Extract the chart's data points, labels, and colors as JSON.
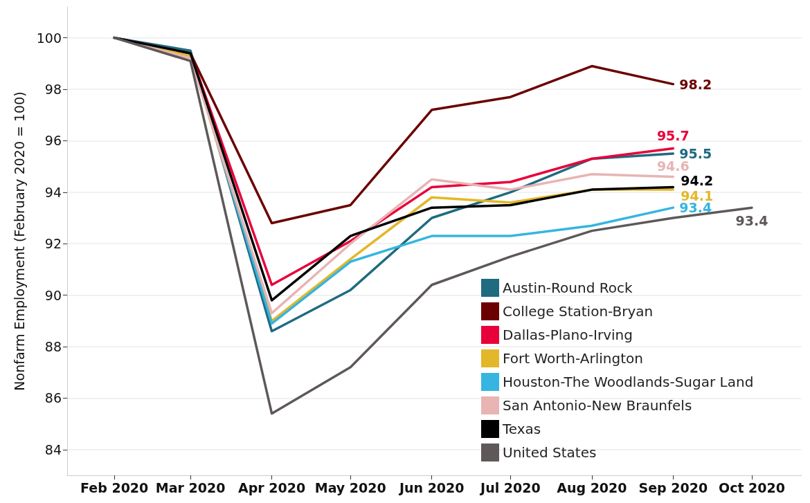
{
  "chart_data": {
    "type": "line",
    "ylabel": "Nonfarm Employment (February 2020 = 100)",
    "x": [
      "2020-02",
      "2020-03",
      "2020-04",
      "2020-05",
      "2020-06",
      "2020-07",
      "2020-08",
      "2020-09"
    ],
    "series": [
      {
        "name": "Austin-Round Rock",
        "color": "#1f6b80",
        "values": [
          100,
          99.5,
          88.6,
          90.2,
          93.0,
          94.0,
          95.3,
          95.5
        ],
        "value_labels": [
          null,
          null,
          null,
          null,
          null,
          null,
          null,
          "95.5"
        ]
      },
      {
        "name": "College Station-Bryan",
        "color": "#6b0000",
        "values": [
          100,
          99.4,
          92.8,
          93.5,
          97.2,
          97.7,
          98.9,
          98.2
        ],
        "value_labels": [
          null,
          null,
          null,
          null,
          null,
          null,
          null,
          "98.2"
        ]
      },
      {
        "name": "Dallas-Plano-Irving",
        "color": "#e8003a",
        "values": [
          100,
          99.4,
          90.4,
          92.1,
          94.2,
          94.4,
          95.3,
          95.7
        ],
        "value_labels": [
          null,
          null,
          null,
          null,
          null,
          null,
          null,
          "95.7"
        ]
      },
      {
        "name": "Fort Worth-Arlington",
        "color": "#e3b72a",
        "values": [
          100,
          99.3,
          89.0,
          91.4,
          93.8,
          93.6,
          94.1,
          94.1
        ],
        "value_labels": [
          null,
          null,
          null,
          null,
          null,
          null,
          null,
          "94.1"
        ]
      },
      {
        "name": "Houston-The Woodlands-Sugar Land",
        "color": "#35b5e0",
        "values": [
          100,
          99.4,
          88.9,
          91.3,
          92.3,
          92.3,
          92.7,
          93.4
        ],
        "value_labels": [
          null,
          null,
          null,
          null,
          null,
          null,
          null,
          "93.4"
        ]
      },
      {
        "name": "San Antonio-New Braunfels",
        "color": "#e8b4b4",
        "values": [
          100,
          99.2,
          89.3,
          92.0,
          94.5,
          94.1,
          94.7,
          94.6
        ],
        "value_labels": [
          null,
          null,
          null,
          null,
          null,
          null,
          null,
          "94.6"
        ]
      },
      {
        "name": "Texas",
        "color": "#000000",
        "values": [
          100,
          99.4,
          89.8,
          92.3,
          93.4,
          93.5,
          94.1,
          94.2
        ],
        "value_labels": [
          null,
          null,
          null,
          null,
          null,
          null,
          null,
          "94.2"
        ]
      },
      {
        "name": "United States",
        "color": "#5e5858",
        "x": [
          "2020-02",
          "2020-03",
          "2020-04",
          "2020-05",
          "2020-06",
          "2020-07",
          "2020-08",
          "2020-09",
          "2020-10"
        ],
        "values": [
          100,
          99.1,
          85.4,
          87.2,
          90.4,
          91.5,
          92.5,
          93.0,
          93.4
        ],
        "value_labels": [
          null,
          null,
          null,
          null,
          null,
          null,
          null,
          null,
          "93.4"
        ]
      }
    ],
    "xlim": [
      "2020-01-14",
      "2020-10-20"
    ],
    "xticks": [
      {
        "value": "2020-02",
        "label": "Feb 2020"
      },
      {
        "value": "2020-03",
        "label": "Mar 2020"
      },
      {
        "value": "2020-04",
        "label": "Apr 2020"
      },
      {
        "value": "2020-05",
        "label": "May 2020"
      },
      {
        "value": "2020-06",
        "label": "Jun 2020"
      },
      {
        "value": "2020-07",
        "label": "Jul 2020"
      },
      {
        "value": "2020-08",
        "label": "Aug 2020"
      },
      {
        "value": "2020-09",
        "label": "Sep 2020"
      },
      {
        "value": "2020-10",
        "label": "Oct 2020"
      }
    ],
    "ylim": [
      83,
      101.2
    ],
    "yticks": [
      84,
      86,
      88,
      90,
      92,
      94,
      96,
      98,
      100
    ],
    "grid": "y",
    "legend": "bottom right",
    "marker": "none",
    "line_style": "solid"
  }
}
